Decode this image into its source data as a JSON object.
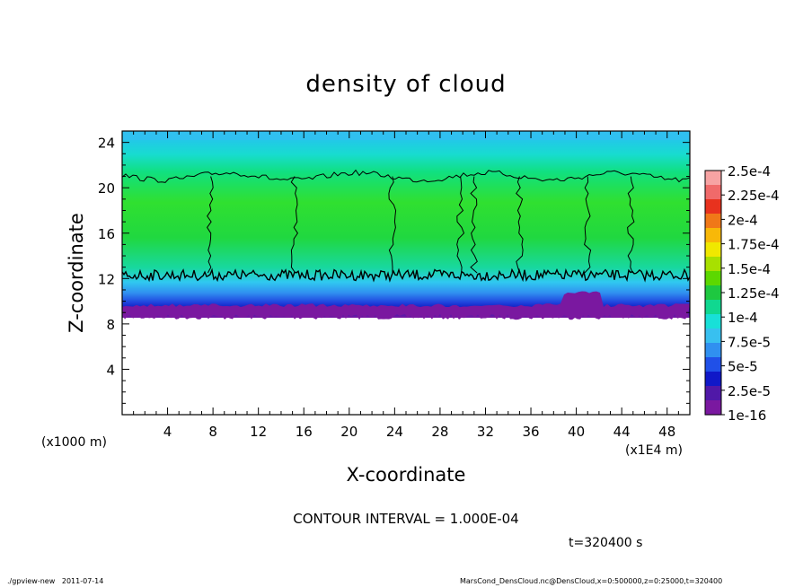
{
  "chart_data": {
    "type": "heatmap",
    "title": "density of cloud",
    "xlabel": "X-coordinate",
    "ylabel": "Z-coordinate",
    "x_unit_label": "(x1E4 m)",
    "y_unit_label": "(x1000 m)",
    "xlim": [
      0,
      50
    ],
    "ylim": [
      0,
      25
    ],
    "x_ticks": [
      4,
      8,
      12,
      16,
      20,
      24,
      28,
      32,
      36,
      40,
      44,
      48
    ],
    "y_ticks": [
      4,
      8,
      12,
      16,
      20,
      24
    ],
    "colorbar": {
      "labels": [
        "2.5e-4",
        "2.25e-4",
        "2e-4",
        "1.75e-4",
        "1.5e-4",
        "1.25e-4",
        "1e-4",
        "7.5e-5",
        "5e-5",
        "2.5e-5",
        "1e-16"
      ],
      "colors": [
        "#f7a3a3",
        "#f06a6a",
        "#e8321e",
        "#f07818",
        "#f8b808",
        "#f0e800",
        "#a8e000",
        "#5cd800",
        "#1ec840",
        "#10d890",
        "#18e0d8",
        "#38c0f0",
        "#3090f0",
        "#2050e8",
        "#1018c8",
        "#5018a8",
        "#7a18a0"
      ]
    },
    "contour_interval_text": "CONTOUR INTERVAL = 1.000E-04",
    "contour_level": 0.0001,
    "time_text": "t=320400 s",
    "cloud_layer": {
      "base_z": 9.0,
      "top_z_contour": 21.0,
      "lower_contour_z": 12.3,
      "sky_z_above": 24.5
    }
  },
  "footer": {
    "left": "./gpview-new   2011-07-14",
    "right": "MarsCond_DensCloud.nc@DensCloud,x=0:500000,z=0:25000,t=320400"
  }
}
